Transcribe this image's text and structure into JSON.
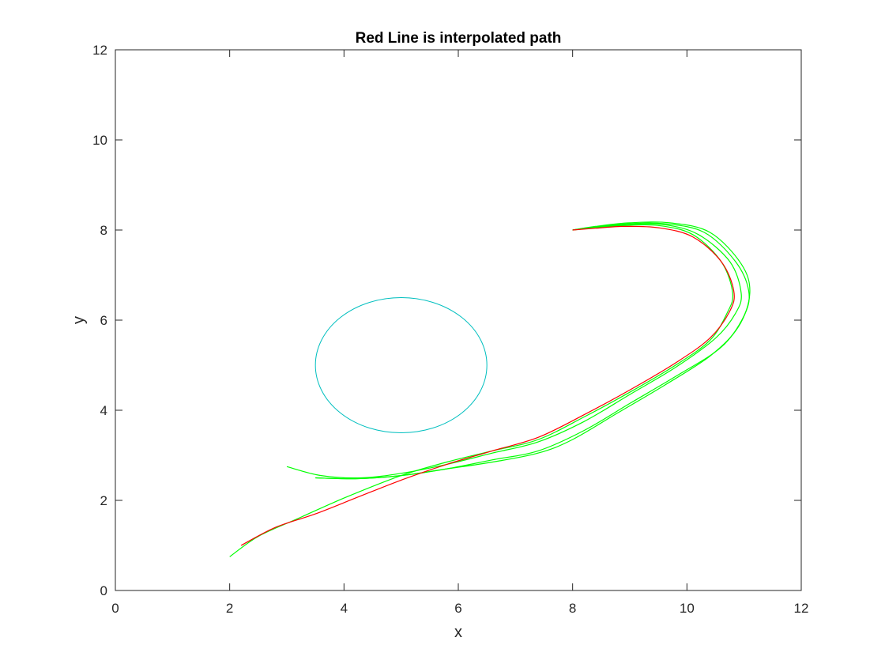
{
  "chart_data": {
    "type": "line",
    "title": "Red Line is interpolated path",
    "xlabel": "x",
    "ylabel": "y",
    "xlim": [
      0,
      12
    ],
    "ylim": [
      0,
      12
    ],
    "xticks": [
      "0",
      "2",
      "4",
      "6",
      "8",
      "10",
      "12"
    ],
    "yticks": [
      "0",
      "2",
      "4",
      "6",
      "8",
      "10",
      "12"
    ],
    "grid": false,
    "series": [
      {
        "color": "#ff0000",
        "x": [
          2.2,
          2.8,
          3.5,
          4.2,
          5.0,
          5.8,
          6.6,
          7.4,
          8.2,
          9.0,
          9.8,
          10.4,
          10.75,
          10.82,
          10.6,
          10.1,
          9.5,
          8.9,
          8.4,
          8.0
        ],
        "y": [
          1.0,
          1.4,
          1.7,
          2.05,
          2.45,
          2.8,
          3.1,
          3.4,
          3.9,
          4.45,
          5.05,
          5.6,
          6.2,
          6.65,
          7.3,
          7.85,
          8.05,
          8.08,
          8.04,
          8.0
        ]
      },
      {
        "color": "#00ff00",
        "x": [
          2.0,
          2.5,
          3.2,
          4.0,
          5.0,
          5.8,
          6.6,
          7.4,
          8.2,
          9.0,
          9.8,
          10.4,
          10.7,
          10.8,
          10.6,
          10.1,
          9.5,
          8.9,
          8.4,
          8.0
        ],
        "y": [
          0.75,
          1.2,
          1.6,
          2.05,
          2.55,
          2.85,
          3.1,
          3.35,
          3.85,
          4.4,
          5.0,
          5.55,
          6.15,
          6.6,
          7.3,
          7.9,
          8.1,
          8.1,
          8.05,
          8.0
        ]
      },
      {
        "color": "#00ff00",
        "x": [
          3.0,
          3.6,
          4.3,
          5.0,
          5.8,
          6.6,
          7.4,
          8.2,
          9.0,
          9.8,
          10.5,
          10.85,
          10.95,
          10.75,
          10.2,
          9.6,
          9.0,
          8.4,
          8.0
        ],
        "y": [
          2.75,
          2.55,
          2.5,
          2.6,
          2.8,
          3.05,
          3.3,
          3.75,
          4.35,
          4.95,
          5.6,
          6.15,
          6.6,
          7.3,
          7.9,
          8.12,
          8.12,
          8.06,
          8.0
        ]
      },
      {
        "color": "#00ff00",
        "x": [
          3.5,
          4.2,
          5.0,
          5.8,
          6.6,
          7.4,
          8.2,
          9.0,
          9.8,
          10.6,
          11.0,
          11.08,
          10.85,
          10.3,
          9.6,
          9.0,
          8.4,
          8.0
        ],
        "y": [
          2.5,
          2.48,
          2.55,
          2.7,
          2.9,
          3.1,
          3.55,
          4.15,
          4.75,
          5.4,
          6.1,
          6.65,
          7.3,
          7.95,
          8.14,
          8.14,
          8.07,
          8.0
        ]
      },
      {
        "color": "#00ff00",
        "x": [
          3.5,
          4.2,
          5.0,
          5.8,
          6.6,
          7.4,
          8.0,
          8.8,
          9.6,
          10.4,
          10.9,
          11.1,
          10.95,
          10.4,
          9.7,
          9.0,
          8.4,
          8.0
        ],
        "y": [
          2.5,
          2.48,
          2.55,
          2.7,
          2.85,
          3.05,
          3.35,
          3.95,
          4.55,
          5.2,
          5.85,
          6.6,
          7.25,
          7.95,
          8.16,
          8.16,
          8.08,
          8.0
        ]
      }
    ],
    "circle": {
      "color": "#00bfbf",
      "cx": 5.0,
      "cy": 5.0,
      "r": 1.5
    }
  }
}
